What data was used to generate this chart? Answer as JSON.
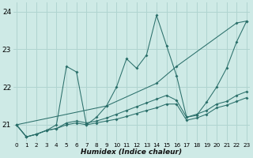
{
  "xlabel": "Humidex (Indice chaleur)",
  "bg_color": "#ceeae6",
  "grid_color": "#b0d4d0",
  "line_color": "#2a6f6a",
  "xlim": [
    -0.3,
    23.3
  ],
  "ylim": [
    20.55,
    24.25
  ],
  "yticks": [
    21,
    22,
    23,
    24
  ],
  "xticks": [
    0,
    1,
    2,
    3,
    4,
    5,
    6,
    7,
    8,
    9,
    10,
    11,
    12,
    13,
    14,
    15,
    16,
    17,
    18,
    19,
    20,
    21,
    22,
    23
  ],
  "lines": [
    {
      "x": [
        0,
        1,
        2,
        3,
        4,
        5,
        6,
        7,
        8,
        9,
        10,
        11,
        12,
        13,
        14,
        15,
        16,
        17,
        18,
        19,
        20,
        21,
        22,
        23
      ],
      "y": [
        21.0,
        20.68,
        20.75,
        20.85,
        21.0,
        22.55,
        22.4,
        21.0,
        21.2,
        21.5,
        22.0,
        22.75,
        22.5,
        22.85,
        23.9,
        23.1,
        22.3,
        21.2,
        21.25,
        21.6,
        22.0,
        22.5,
        23.2,
        23.75
      ]
    },
    {
      "x": [
        0,
        9,
        14,
        16,
        22,
        23
      ],
      "y": [
        21.0,
        21.5,
        22.1,
        22.55,
        23.7,
        23.75
      ]
    },
    {
      "x": [
        0,
        1,
        2,
        3,
        4,
        5,
        6,
        7,
        8,
        9,
        10,
        11,
        12,
        13,
        14,
        15,
        16,
        17,
        18,
        19,
        20,
        21,
        22,
        23
      ],
      "y": [
        21.0,
        20.68,
        20.75,
        20.85,
        20.9,
        21.05,
        21.1,
        21.05,
        21.1,
        21.18,
        21.28,
        21.38,
        21.48,
        21.58,
        21.68,
        21.78,
        21.65,
        21.2,
        21.28,
        21.38,
        21.55,
        21.62,
        21.78,
        21.88
      ]
    },
    {
      "x": [
        0,
        1,
        2,
        3,
        4,
        5,
        6,
        7,
        8,
        9,
        10,
        11,
        12,
        13,
        14,
        15,
        16,
        17,
        18,
        19,
        20,
        21,
        22,
        23
      ],
      "y": [
        21.0,
        20.68,
        20.75,
        20.85,
        20.9,
        21.0,
        21.05,
        21.0,
        21.05,
        21.1,
        21.15,
        21.22,
        21.3,
        21.38,
        21.45,
        21.55,
        21.55,
        21.12,
        21.18,
        21.28,
        21.45,
        21.52,
        21.62,
        21.72
      ]
    }
  ]
}
